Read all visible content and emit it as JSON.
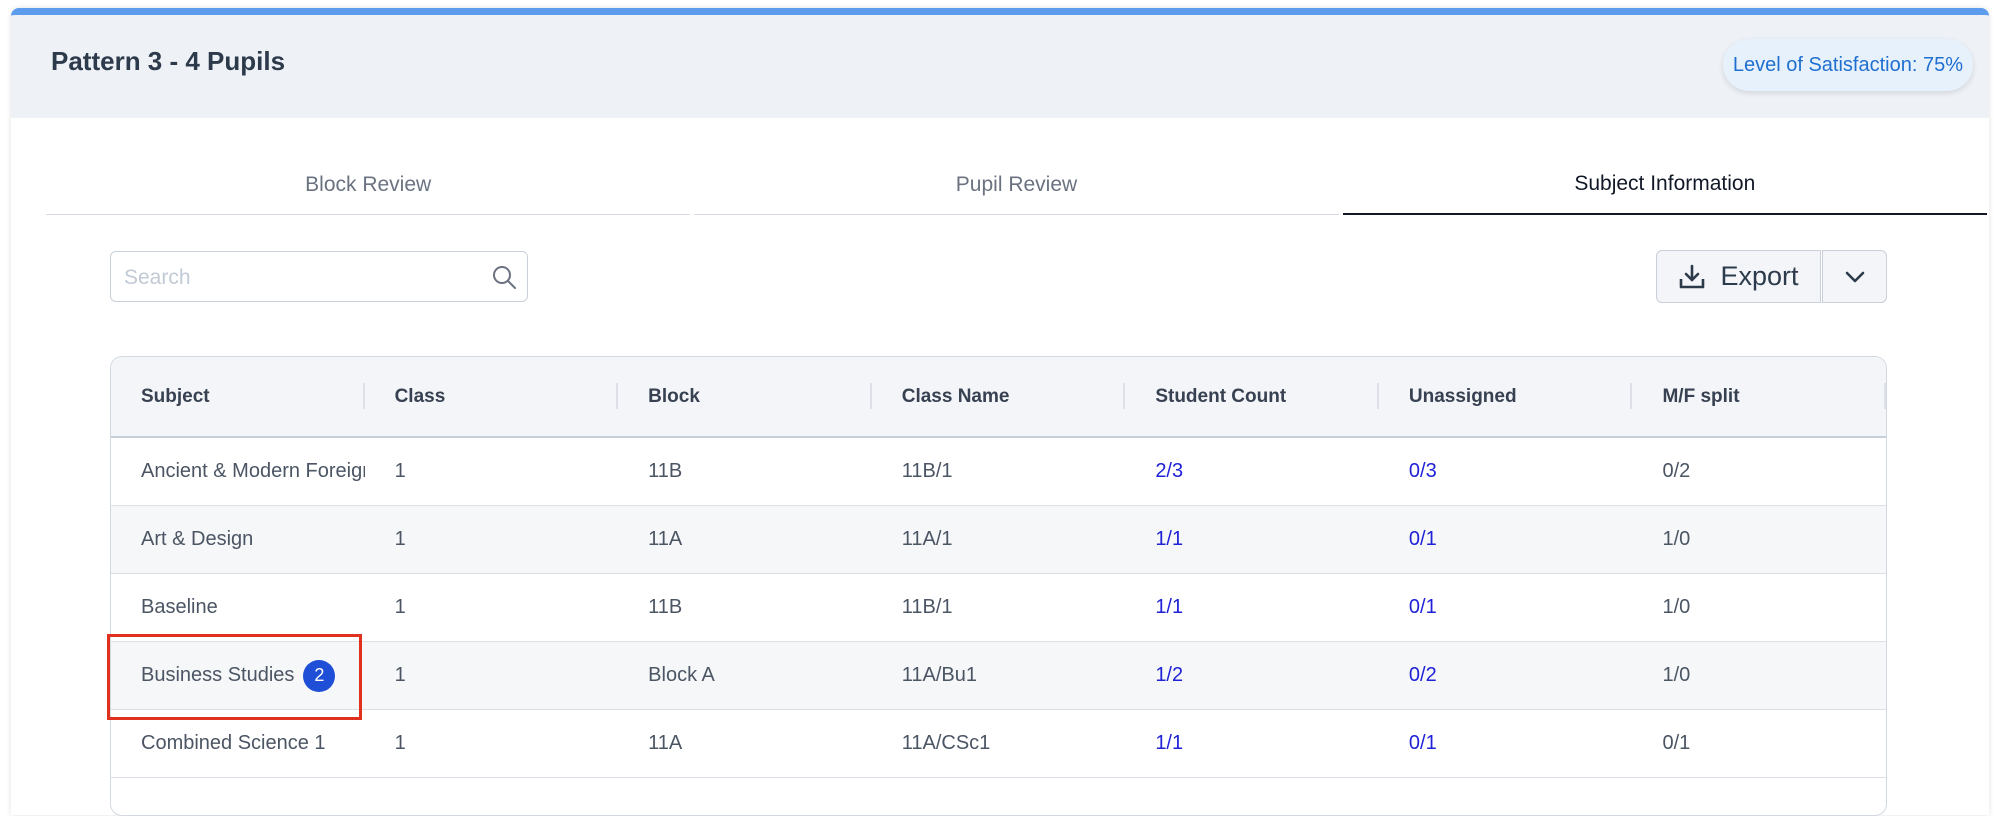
{
  "header": {
    "title": "Pattern 3 - 4 Pupils",
    "satisfaction": "Level of Satisfaction: 75%"
  },
  "tabs": [
    {
      "label": "Block Review",
      "active": false
    },
    {
      "label": "Pupil Review",
      "active": false
    },
    {
      "label": "Subject Information",
      "active": true
    }
  ],
  "search": {
    "placeholder": "Search",
    "value": "",
    "icon": "search-icon"
  },
  "toolbar": {
    "export_label": "Export",
    "export_icon": "download-icon",
    "dropdown_icon": "chevron-down-icon"
  },
  "table": {
    "columns": [
      "Subject",
      "Class",
      "Block",
      "Class Name",
      "Student Count",
      "Unassigned",
      "M/F split"
    ],
    "rows": [
      {
        "subject": "Ancient & Modern Foreign Languages",
        "class": "1",
        "block": "11B",
        "class_name": "11B/1",
        "student_count": "2/3",
        "unassigned": "0/3",
        "mf_split": "0/2"
      },
      {
        "subject": "Art & Design",
        "class": "1",
        "block": "11A",
        "class_name": "11A/1",
        "student_count": "1/1",
        "unassigned": "0/1",
        "mf_split": "1/0"
      },
      {
        "subject": "Baseline",
        "class": "1",
        "block": "11B",
        "class_name": "11B/1",
        "student_count": "1/1",
        "unassigned": "0/1",
        "mf_split": "1/0"
      },
      {
        "subject": "Business Studies",
        "badge": "2",
        "class": "1",
        "block": "Block A",
        "class_name": "11A/Bu1",
        "student_count": "1/2",
        "unassigned": "0/2",
        "mf_split": "1/0"
      },
      {
        "subject": "Combined Science 1",
        "class": "1",
        "block": "11A",
        "class_name": "11A/CSc1",
        "student_count": "1/1",
        "unassigned": "0/1",
        "mf_split": "0/1"
      }
    ]
  },
  "colors": {
    "accent": "#5b9cec",
    "link": "#1f22d6",
    "badge": "#1f4fd6",
    "highlight": "#e0301e"
  }
}
